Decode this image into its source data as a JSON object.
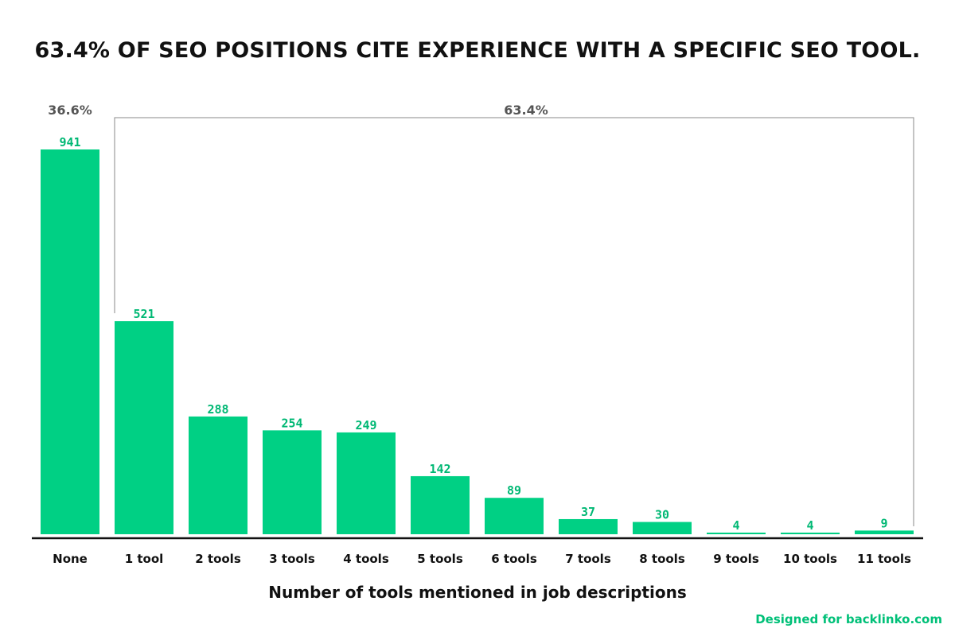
{
  "title": "63.4% OF SEO POSITIONS CITE EXPERIENCE WITH A SPECIFIC SEO TOOL.",
  "credit": "Designed for backlinko.com",
  "colors": {
    "bar": "#00d084",
    "value_label": "#00b874",
    "credit": "#00c078",
    "axis": "#111111",
    "bracket": "#888888",
    "group_label": "#555555"
  },
  "chart_data": {
    "type": "bar",
    "title": "63.4% OF SEO POSITIONS CITE EXPERIENCE WITH A SPECIFIC SEO TOOL.",
    "xlabel": "Number of tools mentioned in job descriptions",
    "ylabel": "",
    "categories": [
      "None",
      "1 tool",
      "2 tools",
      "3 tools",
      "4 tools",
      "5 tools",
      "6 tools",
      "7 tools",
      "8 tools",
      "9 tools",
      "10 tools",
      "11 tools"
    ],
    "values": [
      941,
      521,
      288,
      254,
      249,
      142,
      89,
      37,
      30,
      4,
      4,
      9
    ],
    "ylim": [
      0,
      941
    ],
    "grid": false,
    "annotations": [
      {
        "text": "36.6%",
        "covers": [
          "None"
        ]
      },
      {
        "text": "63.4%",
        "covers": [
          "1 tool",
          "2 tools",
          "3 tools",
          "4 tools",
          "5 tools",
          "6 tools",
          "7 tools",
          "8 tools",
          "9 tools",
          "10 tools",
          "11 tools"
        ]
      }
    ]
  }
}
